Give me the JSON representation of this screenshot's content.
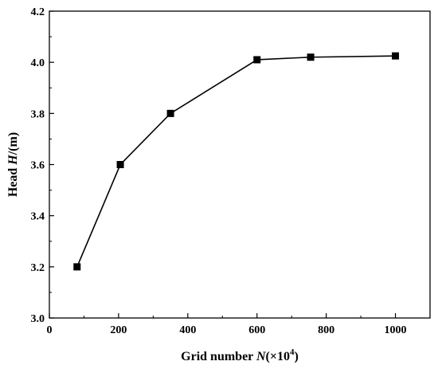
{
  "chart_data": {
    "type": "line",
    "x": [
      80,
      205,
      350,
      600,
      755,
      1000
    ],
    "y": [
      3.2,
      3.6,
      3.8,
      4.01,
      4.02,
      4.025
    ],
    "xlim": [
      0,
      1100
    ],
    "ylim": [
      3.0,
      4.2
    ],
    "xticks": [
      0,
      200,
      400,
      600,
      800,
      1000
    ],
    "yticks": [
      3.0,
      3.2,
      3.4,
      3.6,
      3.8,
      4.0,
      4.2
    ],
    "xtick_labels": [
      "0",
      "200",
      "400",
      "600",
      "800",
      "1000"
    ],
    "ytick_labels": [
      "3.0",
      "3.2",
      "3.4",
      "3.6",
      "3.8",
      "4.0",
      "4.2"
    ],
    "xlabel": {
      "prefix": "Grid number ",
      "var": "N",
      "unit_open": "(×10",
      "unit_sup": "4",
      "unit_close": ")"
    },
    "ylabel": {
      "prefix": "Head ",
      "var": "H",
      "suffix": "/(m)"
    },
    "marker": "square",
    "grid": false,
    "line_color": "#000000",
    "marker_color": "#000000"
  }
}
